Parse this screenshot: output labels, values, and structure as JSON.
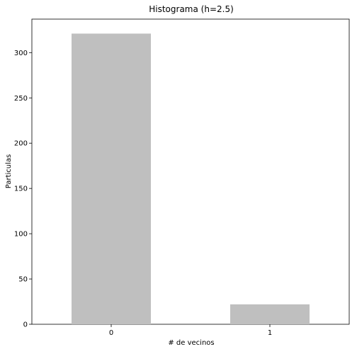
{
  "chart_data": {
    "type": "bar",
    "title": "Histograma (h=2.5)",
    "xlabel": "# de vecinos",
    "ylabel": "Particulas",
    "categories": [
      "0",
      "1"
    ],
    "values": [
      321,
      22
    ],
    "ylim": [
      0,
      337
    ],
    "yticks": [
      0,
      50,
      100,
      150,
      200,
      250,
      300
    ],
    "bar_color": "#bfbfbf",
    "grid": false,
    "legend": "none"
  }
}
